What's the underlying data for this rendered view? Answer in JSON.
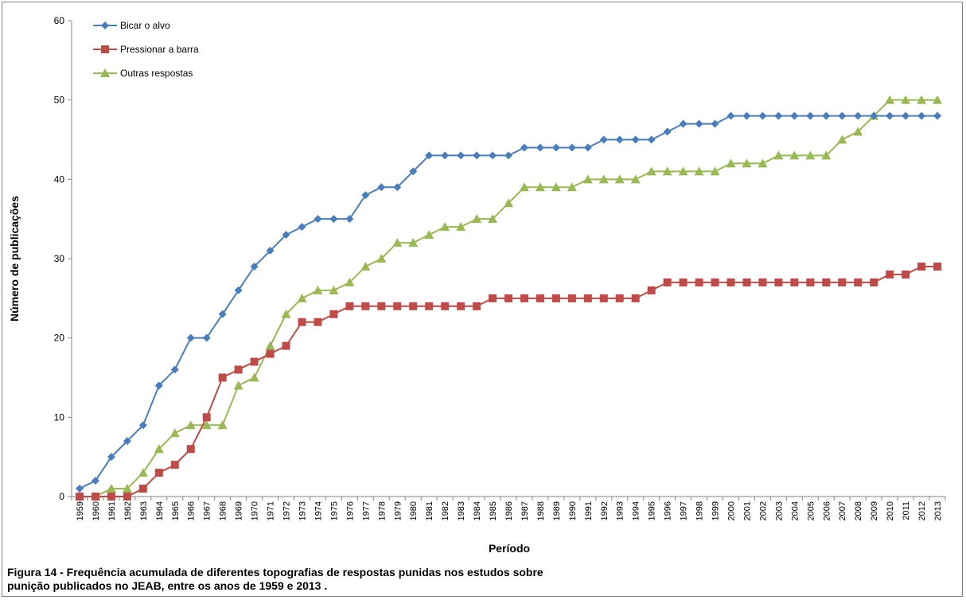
{
  "caption": {
    "line1": "Figura 14 - Frequência acumulada de diferentes topografias de respostas punidas  nos estudos sobre",
    "line2": "punição publicados no JEAB, entre os anos de 1959 e 2013 ."
  },
  "chart_data": {
    "type": "line",
    "xlabel": "Período",
    "ylabel": "Número de publicações",
    "ylim": [
      0,
      60
    ],
    "yticks": [
      0,
      10,
      20,
      30,
      40,
      50,
      60
    ],
    "grid": false,
    "legend_position": "top-left",
    "categories": [
      "1959",
      "1960",
      "1961",
      "1962",
      "1963",
      "1964",
      "1965",
      "1966",
      "1967",
      "1968",
      "1969",
      "1970",
      "1971",
      "1972",
      "1973",
      "1974",
      "1975",
      "1976",
      "1977",
      "1978",
      "1979",
      "1980",
      "1981",
      "1982",
      "1983",
      "1984",
      "1985",
      "1986",
      "1987",
      "1988",
      "1989",
      "1990",
      "1991",
      "1992",
      "1993",
      "1994",
      "1995",
      "1996",
      "1997",
      "1998",
      "1999",
      "2000",
      "2001",
      "2002",
      "2003",
      "2004",
      "2005",
      "2006",
      "2007",
      "2008",
      "2009",
      "2010",
      "2011",
      "2012",
      "2013"
    ],
    "series": [
      {
        "name": "Bicar o alvo",
        "color": "#4a7ebb",
        "marker": "diamond",
        "values": [
          1,
          2,
          5,
          7,
          9,
          14,
          16,
          20,
          20,
          23,
          26,
          29,
          31,
          33,
          34,
          35,
          35,
          35,
          38,
          39,
          39,
          41,
          43,
          43,
          43,
          43,
          43,
          43,
          44,
          44,
          44,
          44,
          44,
          45,
          45,
          45,
          45,
          46,
          47,
          47,
          47,
          48,
          48,
          48,
          48,
          48,
          48,
          48,
          48,
          48,
          48,
          48,
          48,
          48,
          48
        ]
      },
      {
        "name": "Pressionar a barra",
        "color": "#be4b48",
        "marker": "square",
        "values": [
          0,
          0,
          0,
          0,
          1,
          3,
          4,
          6,
          10,
          15,
          16,
          17,
          18,
          19,
          22,
          22,
          23,
          24,
          24,
          24,
          24,
          24,
          24,
          24,
          24,
          24,
          25,
          25,
          25,
          25,
          25,
          25,
          25,
          25,
          25,
          25,
          26,
          27,
          27,
          27,
          27,
          27,
          27,
          27,
          27,
          27,
          27,
          27,
          27,
          27,
          27,
          28,
          28,
          29,
          29
        ]
      },
      {
        "name": "Outras respostas",
        "color": "#98b954",
        "marker": "triangle",
        "values": [
          0,
          0,
          1,
          1,
          3,
          6,
          8,
          9,
          9,
          9,
          14,
          15,
          19,
          23,
          25,
          26,
          26,
          27,
          29,
          30,
          32,
          32,
          33,
          34,
          34,
          35,
          35,
          37,
          39,
          39,
          39,
          39,
          40,
          40,
          40,
          40,
          41,
          41,
          41,
          41,
          41,
          42,
          42,
          42,
          43,
          43,
          43,
          43,
          45,
          46,
          48,
          50,
          50,
          50,
          50
        ]
      }
    ]
  }
}
